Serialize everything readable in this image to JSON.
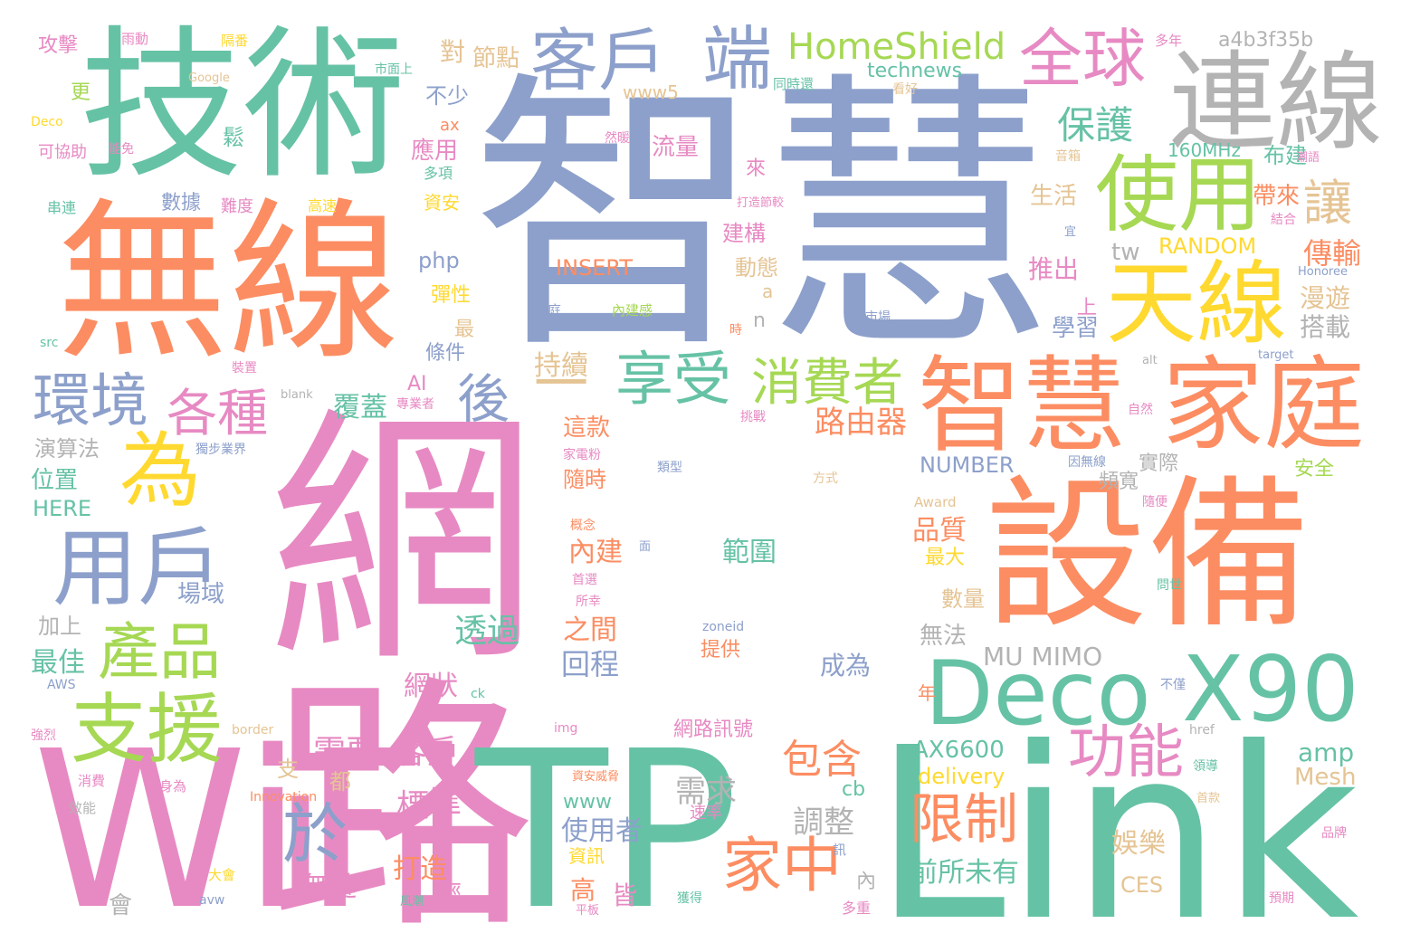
{
  "palette": {
    "pink": "#e78ac3",
    "green": "#66c2a5",
    "orange": "#fc8d62",
    "blue": "#8da0cb",
    "lime": "#a6d854",
    "yellow": "#ffd92f",
    "tan": "#e5c494",
    "gray": "#b3b3b3"
  },
  "words": [
    {
      "text": "網路",
      "color": "pink"
    },
    {
      "text": "智慧",
      "color": "blue"
    },
    {
      "text": "無線",
      "color": "orange"
    },
    {
      "text": "技術",
      "color": "green"
    },
    {
      "text": "WiFi",
      "color": "pink"
    },
    {
      "text": "TP",
      "color": "green"
    },
    {
      "text": "Link",
      "color": "green"
    },
    {
      "text": "設備",
      "color": "orange"
    },
    {
      "text": "連線",
      "color": "gray"
    },
    {
      "text": "智慧",
      "color": "orange"
    },
    {
      "text": "家庭",
      "color": "orange"
    },
    {
      "text": "天線",
      "color": "yellow"
    },
    {
      "text": "Deco",
      "color": "green"
    },
    {
      "text": "X90",
      "color": "green"
    },
    {
      "text": "使用",
      "color": "lime"
    },
    {
      "text": "用戶",
      "color": "blue"
    },
    {
      "text": "支援",
      "color": "lime"
    },
    {
      "text": "產品",
      "color": "lime"
    },
    {
      "text": "客戶",
      "color": "blue"
    },
    {
      "text": "端",
      "color": "blue"
    },
    {
      "text": "全球",
      "color": "pink"
    },
    {
      "text": "享受",
      "color": "green"
    },
    {
      "text": "消費者",
      "color": "lime"
    },
    {
      "text": "環境",
      "color": "blue"
    },
    {
      "text": "為",
      "color": "yellow"
    },
    {
      "text": "各種",
      "color": "pink"
    },
    {
      "text": "後",
      "color": "blue"
    },
    {
      "text": "一",
      "color": "tan"
    },
    {
      "text": "功能",
      "color": "pink"
    },
    {
      "text": "限制",
      "color": "orange"
    },
    {
      "text": "家中",
      "color": "orange"
    },
    {
      "text": "於",
      "color": "blue"
    },
    {
      "text": "包含",
      "color": "orange"
    },
    {
      "text": "HomeShield",
      "color": "lime"
    },
    {
      "text": "保護",
      "color": "green"
    },
    {
      "text": "讓",
      "color": "tan"
    },
    {
      "text": "傳輸",
      "color": "orange"
    },
    {
      "text": "路由器",
      "color": "orange"
    },
    {
      "text": "透過",
      "color": "green"
    },
    {
      "text": "需要",
      "color": "pink"
    },
    {
      "text": "客戶",
      "color": "pink"
    },
    {
      "text": "標準",
      "color": "pink"
    },
    {
      "text": "網狀",
      "color": "pink"
    },
    {
      "text": "範圍",
      "color": "green"
    },
    {
      "text": "回程",
      "color": "blue"
    },
    {
      "text": "內建",
      "color": "orange"
    },
    {
      "text": "之間",
      "color": "orange"
    },
    {
      "text": "使用者",
      "color": "blue"
    },
    {
      "text": "調整",
      "color": "gray"
    },
    {
      "text": "前所未有",
      "color": "green"
    },
    {
      "text": "娛樂",
      "color": "tan"
    },
    {
      "text": "無縫",
      "color": "pink"
    },
    {
      "text": "打造",
      "color": "orange"
    },
    {
      "text": "MU MIMO",
      "color": "gray"
    },
    {
      "text": "AX6600",
      "color": "green"
    },
    {
      "text": "delivery",
      "color": "yellow"
    },
    {
      "text": "amp",
      "color": "green"
    },
    {
      "text": "Mesh",
      "color": "tan"
    },
    {
      "text": "NUMBER",
      "color": "blue"
    },
    {
      "text": "RANDOM",
      "color": "yellow"
    },
    {
      "text": "INSERT",
      "color": "orange"
    },
    {
      "text": "technews",
      "color": "green"
    },
    {
      "text": "a4b3f35b",
      "color": "gray"
    },
    {
      "text": "www5",
      "color": "tan"
    },
    {
      "text": "160MHz",
      "color": "green"
    },
    {
      "text": "php",
      "color": "blue"
    },
    {
      "text": "tw",
      "color": "gray"
    },
    {
      "text": "HERE",
      "color": "green"
    },
    {
      "text": "AI",
      "color": "pink"
    },
    {
      "text": "www",
      "color": "green"
    },
    {
      "text": "cb",
      "color": "green"
    },
    {
      "text": "CES",
      "color": "tan"
    },
    {
      "text": "最佳",
      "color": "green"
    },
    {
      "text": "加上",
      "color": "gray"
    },
    {
      "text": "場域",
      "color": "blue"
    },
    {
      "text": "位置",
      "color": "green"
    },
    {
      "text": "演算法",
      "color": "gray"
    },
    {
      "text": "覆蓋",
      "color": "green"
    },
    {
      "text": "持續",
      "color": "tan"
    },
    {
      "text": "這款",
      "color": "orange"
    },
    {
      "text": "隨時",
      "color": "orange"
    },
    {
      "text": "品質",
      "color": "orange"
    },
    {
      "text": "最大",
      "color": "yellow"
    },
    {
      "text": "數量",
      "color": "tan"
    },
    {
      "text": "無法",
      "color": "gray"
    },
    {
      "text": "成為",
      "color": "blue"
    },
    {
      "text": "需求",
      "color": "gray"
    },
    {
      "text": "實際",
      "color": "gray"
    },
    {
      "text": "安全",
      "color": "lime"
    },
    {
      "text": "頻寬",
      "color": "gray"
    },
    {
      "text": "學習",
      "color": "blue"
    },
    {
      "text": "搭載",
      "color": "gray"
    },
    {
      "text": "漫遊",
      "color": "tan"
    },
    {
      "text": "推出",
      "color": "pink"
    },
    {
      "text": "生活",
      "color": "tan"
    },
    {
      "text": "動態",
      "color": "tan"
    },
    {
      "text": "建構",
      "color": "pink"
    },
    {
      "text": "流量",
      "color": "pink"
    },
    {
      "text": "帶來",
      "color": "orange"
    },
    {
      "text": "布建",
      "color": "green"
    },
    {
      "text": "節點",
      "color": "tan"
    },
    {
      "text": "對",
      "color": "tan"
    },
    {
      "text": "不少",
      "color": "blue"
    },
    {
      "text": "應用",
      "color": "pink"
    },
    {
      "text": "資安",
      "color": "yellow"
    },
    {
      "text": "彈性",
      "color": "yellow"
    },
    {
      "text": "條件",
      "color": "blue"
    },
    {
      "text": "數據",
      "color": "blue"
    },
    {
      "text": "攻擊",
      "color": "pink"
    },
    {
      "text": "更",
      "color": "lime"
    },
    {
      "text": "鬆",
      "color": "green"
    },
    {
      "text": "來",
      "color": "pink"
    },
    {
      "text": "上",
      "color": "pink"
    },
    {
      "text": "最",
      "color": "tan"
    },
    {
      "text": "a",
      "color": "tan"
    },
    {
      "text": "n",
      "color": "gray"
    },
    {
      "text": "高",
      "color": "orange"
    },
    {
      "text": "皆",
      "color": "pink"
    },
    {
      "text": "輕",
      "color": "pink"
    },
    {
      "text": "內",
      "color": "gray"
    },
    {
      "text": "會",
      "color": "gray"
    },
    {
      "text": "都",
      "color": "tan"
    },
    {
      "text": "支",
      "color": "tan"
    },
    {
      "text": "年",
      "color": "orange"
    },
    {
      "text": "提供",
      "color": "orange"
    },
    {
      "text": "網路訊號",
      "color": "pink"
    },
    {
      "text": "資訊",
      "color": "yellow"
    },
    {
      "text": "速率",
      "color": "pink"
    },
    {
      "text": "獲得",
      "color": "green"
    },
    {
      "text": "多重",
      "color": "pink"
    },
    {
      "text": "Google",
      "color": "tan"
    },
    {
      "text": "Deco",
      "color": "yellow"
    },
    {
      "text": "可協助",
      "color": "pink"
    },
    {
      "text": "串連",
      "color": "green"
    },
    {
      "text": "難度",
      "color": "pink"
    },
    {
      "text": "高速",
      "color": "yellow"
    },
    {
      "text": "多項",
      "color": "green"
    },
    {
      "text": "ax",
      "color": "orange"
    },
    {
      "text": "家庭",
      "color": "blue"
    },
    {
      "text": "內建感",
      "color": "lime"
    },
    {
      "text": "市場",
      "color": "blue"
    },
    {
      "text": "時",
      "color": "orange"
    },
    {
      "text": "src",
      "color": "green"
    },
    {
      "text": "裝置",
      "color": "pink"
    },
    {
      "text": "blank",
      "color": "gray"
    },
    {
      "text": "專業者",
      "color": "pink"
    },
    {
      "text": "獨步業界",
      "color": "blue"
    },
    {
      "text": "挑戰",
      "color": "pink"
    },
    {
      "text": "家電粉",
      "color": "pink"
    },
    {
      "text": "類型",
      "color": "blue"
    },
    {
      "text": "方式",
      "color": "tan"
    },
    {
      "text": "Award",
      "color": "tan"
    },
    {
      "text": "概念",
      "color": "orange"
    },
    {
      "text": "首選",
      "color": "pink"
    },
    {
      "text": "所幸",
      "color": "pink"
    },
    {
      "text": "zoneid",
      "color": "blue"
    },
    {
      "text": "ck",
      "color": "green"
    },
    {
      "text": "img",
      "color": "pink"
    },
    {
      "text": "AWS",
      "color": "blue"
    },
    {
      "text": "border",
      "color": "tan"
    },
    {
      "text": "強烈",
      "color": "pink"
    },
    {
      "text": "消費",
      "color": "pink"
    },
    {
      "text": "效能",
      "color": "gray"
    },
    {
      "text": "身為",
      "color": "pink"
    },
    {
      "text": "Innovation",
      "color": "orange"
    },
    {
      "text": "大會",
      "color": "yellow"
    },
    {
      "text": "avw",
      "color": "blue"
    },
    {
      "text": "風潮",
      "color": "green"
    },
    {
      "text": "平板",
      "color": "pink"
    },
    {
      "text": "資安威脅",
      "color": "orange"
    },
    {
      "text": "訊",
      "color": "blue"
    },
    {
      "text": "自然",
      "color": "pink"
    },
    {
      "text": "因無線",
      "color": "blue"
    },
    {
      "text": "隨便",
      "color": "pink"
    },
    {
      "text": "問世",
      "color": "green"
    },
    {
      "text": "不僅",
      "color": "blue"
    },
    {
      "text": "領導",
      "color": "green"
    },
    {
      "text": "首款",
      "color": "tan"
    },
    {
      "text": "品牌",
      "color": "pink"
    },
    {
      "text": "預期",
      "color": "pink"
    },
    {
      "text": "href",
      "color": "gray"
    },
    {
      "text": "Honoree",
      "color": "blue"
    },
    {
      "text": "target",
      "color": "blue"
    },
    {
      "text": "alt",
      "color": "gray"
    },
    {
      "text": "結合",
      "color": "pink"
    },
    {
      "text": "音箱",
      "color": "tan"
    },
    {
      "text": "潮語",
      "color": "pink"
    },
    {
      "text": "多年",
      "color": "pink"
    },
    {
      "text": "同時還",
      "color": "green"
    },
    {
      "text": "看好",
      "color": "tan"
    },
    {
      "text": "市面上",
      "color": "green"
    },
    {
      "text": "隔番",
      "color": "yellow"
    },
    {
      "text": "雨動",
      "color": "pink"
    },
    {
      "text": "打造節較",
      "color": "pink"
    },
    {
      "text": "然暖",
      "color": "pink"
    },
    {
      "text": "能免",
      "color": "pink"
    },
    {
      "text": "宜",
      "color": "blue"
    },
    {
      "text": "面",
      "color": "blue"
    }
  ]
}
